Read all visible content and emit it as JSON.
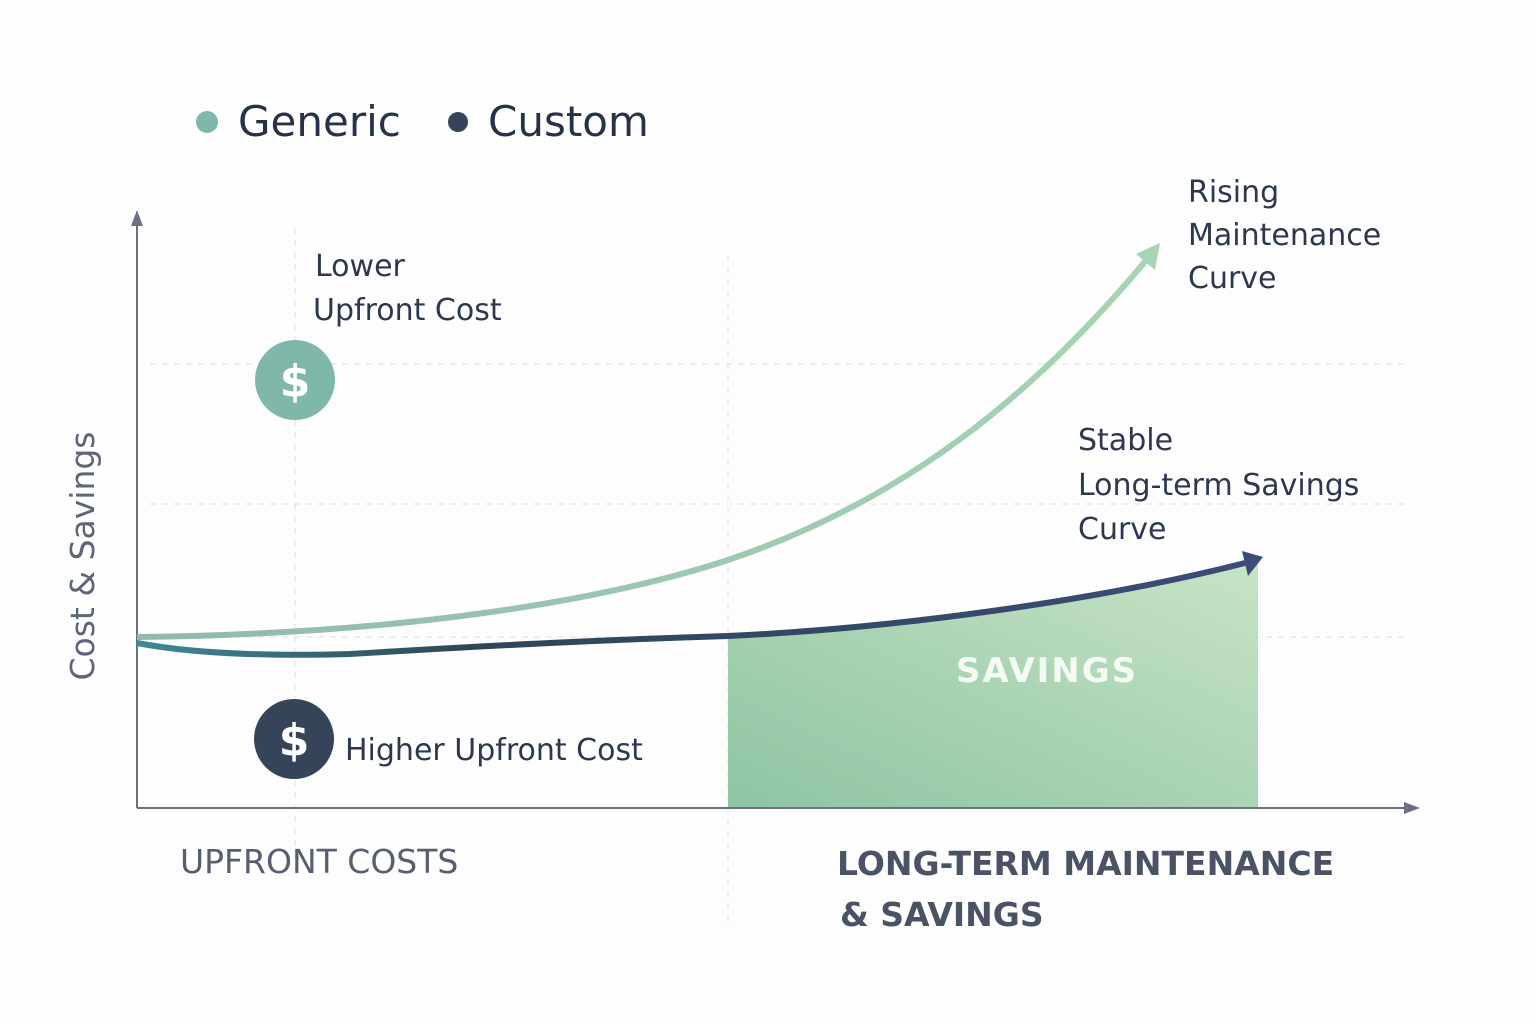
{
  "legend": {
    "generic": {
      "label": "Generic",
      "color": "#7fb8aa"
    },
    "custom": {
      "label": "Custom",
      "color": "#36445a"
    }
  },
  "axis": {
    "y_label": "Cost & Savings"
  },
  "annotations": {
    "lower_upfront": [
      "Lower",
      "Upfront Cost"
    ],
    "higher_upfront": "Higher Upfront Cost",
    "rising": [
      "Rising",
      "Maintenance",
      "Curve"
    ],
    "stable": [
      "Stable",
      "Long-term Savings",
      "Curve"
    ],
    "savings": "SAVINGS",
    "dollar": "$"
  },
  "sections": {
    "upfront": "UPFRONT COSTS",
    "longterm": [
      "LONG-TERM MAINTENANCE",
      "& SAVINGS"
    ]
  },
  "icons": {
    "generic_coin": "dollar-coin-icon",
    "custom_coin": "dollar-coin-icon"
  },
  "colors": {
    "generic_curve": "#9ccab0",
    "custom_curve": "#3b4a70",
    "savings_fill": "#9fcfae"
  }
}
